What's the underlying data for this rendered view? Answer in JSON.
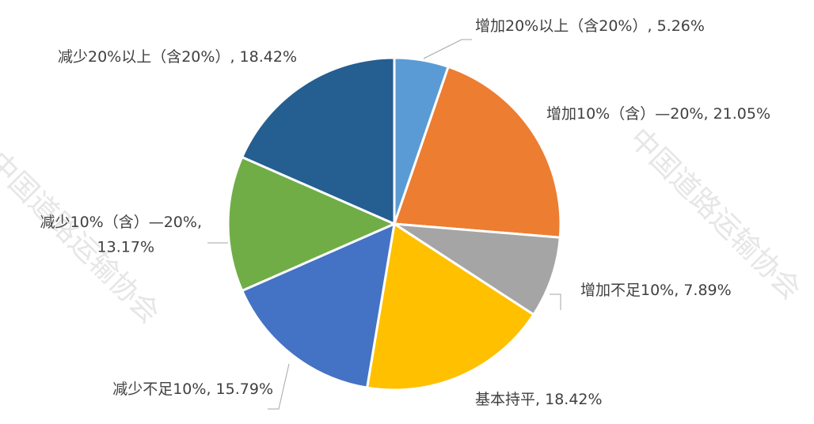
{
  "chart_data": {
    "type": "pie",
    "categories": [
      "增加20%以上（含20%）",
      "增加10%（含）—20%",
      "增加不足10%",
      "基本持平",
      "减少不足10%",
      "减少10%（含）—20%",
      "减少20%以上（含20%）"
    ],
    "values": [
      5.26,
      21.05,
      7.89,
      18.42,
      15.79,
      13.17,
      18.42
    ],
    "value_labels": [
      "5.26%",
      "21.05%",
      "7.89%",
      "18.42%",
      "15.79%",
      "13.17%",
      "18.42%"
    ],
    "label_separator": ", ",
    "colors": [
      "#5b9bd5",
      "#ed7d31",
      "#a5a5a5",
      "#ffc000",
      "#4472c4",
      "#70ad47",
      "#255e91"
    ],
    "watermark": "中国道路运输协会"
  }
}
